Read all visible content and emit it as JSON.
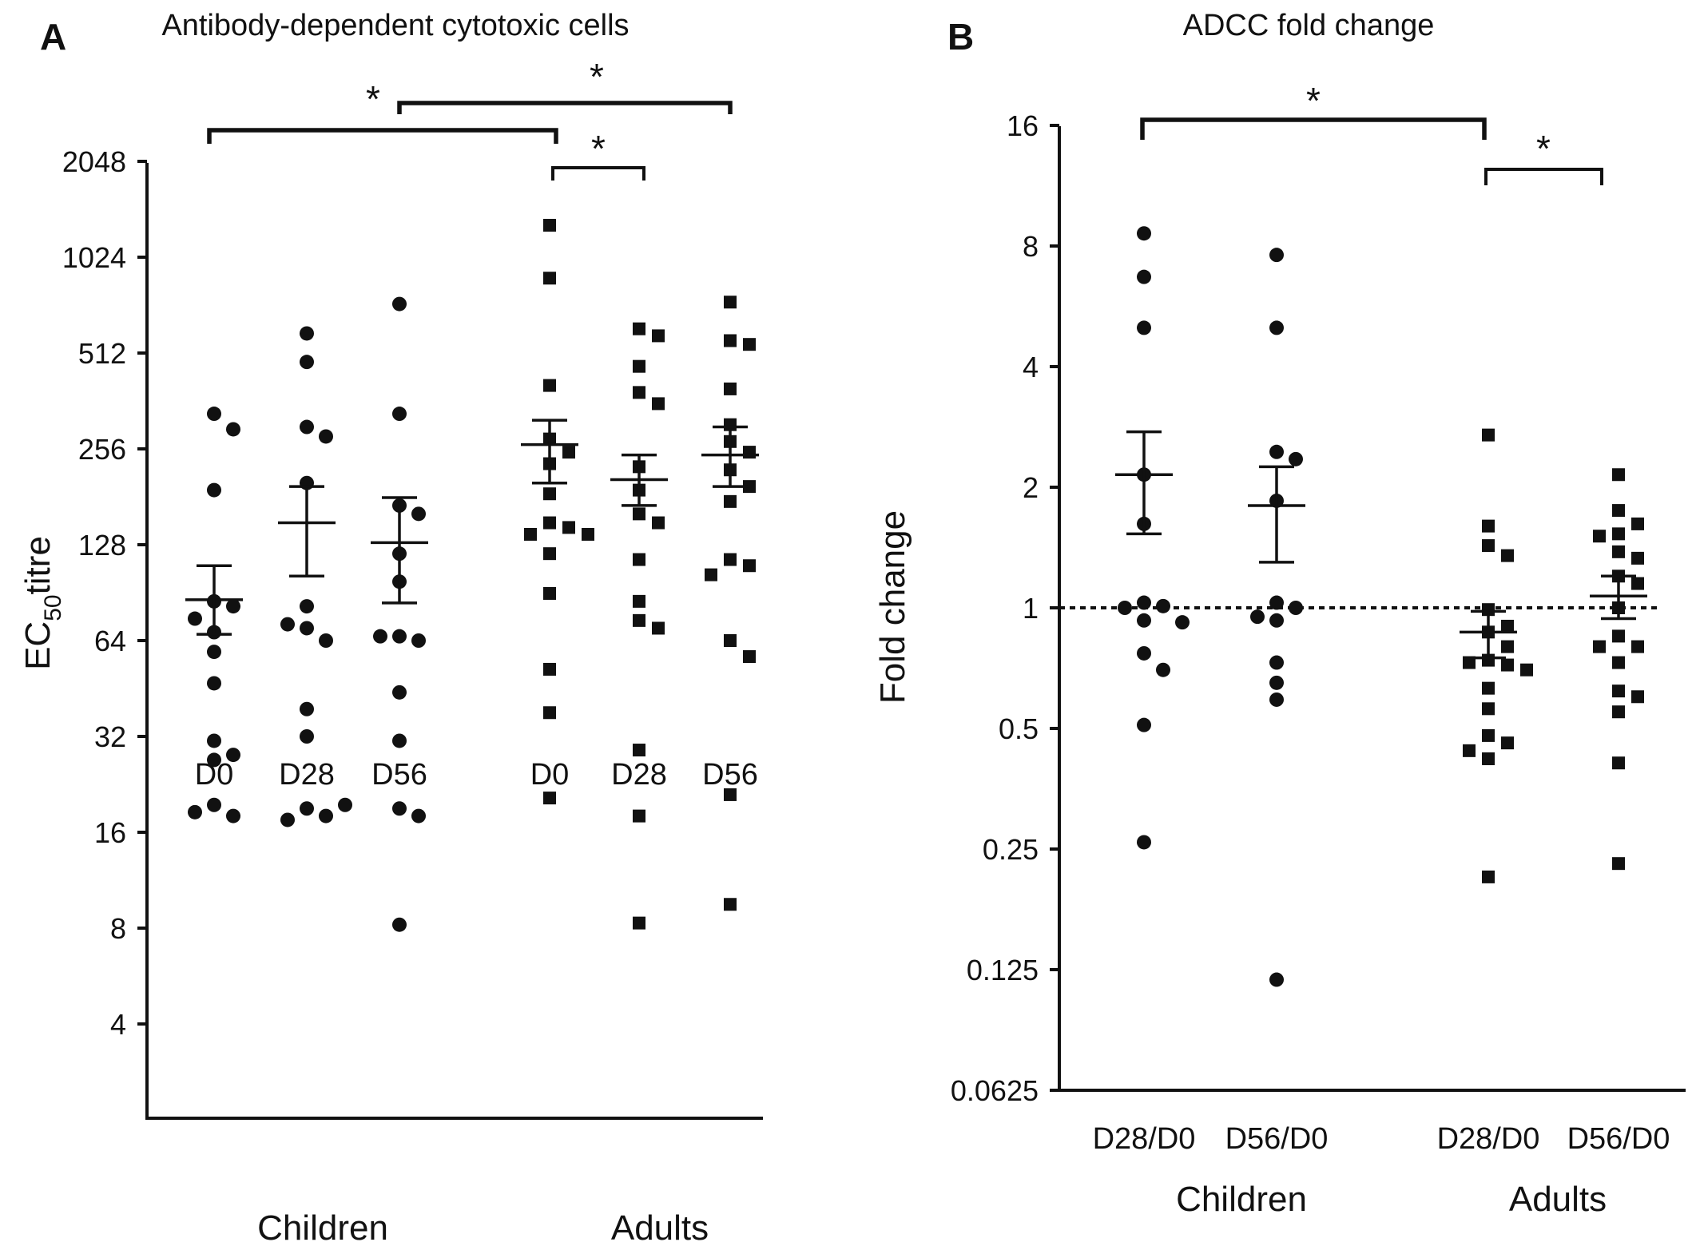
{
  "colors": {
    "ink": "#111111",
    "background": "#ffffff"
  },
  "chart_data": [
    {
      "panel": "A",
      "type": "scatter",
      "title": "Antibody-dependent cytotoxic cells",
      "ylabel": "EC50titre",
      "ylabel_main": "EC",
      "ylabel_sub": "50",
      "ylabel_tail": "titre",
      "yscale": "log2",
      "ylim": [
        2.8,
        2048
      ],
      "yticks": [
        4,
        8,
        16,
        32,
        64,
        128,
        256,
        512,
        1024,
        2048
      ],
      "ytick_labels": [
        "4",
        "8",
        "16",
        "32",
        "64",
        "128",
        "256",
        "512",
        "1024",
        "2048"
      ],
      "groups": [
        "Children",
        "Adults"
      ],
      "categories": [
        "D0",
        "D28",
        "D56",
        "D0",
        "D28",
        "D56"
      ],
      "series": [
        {
          "group": "Children",
          "category": "D0",
          "marker": "circle",
          "mean": 86,
          "sem": [
            67,
            110
          ],
          "values": [
            330,
            295,
            190,
            85,
            82,
            68,
            75,
            59,
            47,
            31,
            28,
            27,
            19.5,
            18,
            18.5
          ]
        },
        {
          "group": "Children",
          "category": "D28",
          "marker": "circle",
          "mean": 150,
          "sem": [
            102,
            195
          ],
          "values": [
            590,
            480,
            300,
            280,
            200,
            82,
            70,
            64,
            72,
            39,
            32,
            19,
            18,
            17.5,
            19.5
          ]
        },
        {
          "group": "Children",
          "category": "D56",
          "marker": "circle",
          "mean": 130,
          "sem": [
            84,
            180
          ],
          "values": [
            730,
            330,
            170,
            160,
            120,
            98,
            66,
            64,
            66,
            44,
            31,
            19,
            18,
            8.2
          ]
        },
        {
          "group": "Adults",
          "category": "D0",
          "marker": "square",
          "mean": 264,
          "sem": [
            200,
            315
          ],
          "values": [
            1290,
            880,
            405,
            275,
            250,
            230,
            185,
            150,
            145,
            138,
            138,
            120,
            90,
            52,
            38,
            20.5
          ]
        },
        {
          "group": "Adults",
          "category": "D28",
          "marker": "square",
          "mean": 205,
          "sem": [
            170,
            245
          ],
          "values": [
            610,
            580,
            465,
            385,
            355,
            225,
            190,
            160,
            150,
            115,
            85,
            74,
            70,
            29,
            18,
            8.3
          ]
        },
        {
          "group": "Adults",
          "category": "D56",
          "marker": "square",
          "mean": 245,
          "sem": [
            195,
            300
          ],
          "values": [
            740,
            560,
            545,
            395,
            305,
            270,
            250,
            220,
            195,
            175,
            115,
            110,
            103,
            64,
            57,
            21,
            9.5
          ]
        }
      ],
      "significance": [
        {
          "from": "Children D0",
          "to": "Adults D0",
          "label": "*"
        },
        {
          "from": "Children D56",
          "to": "Adults D56",
          "label": "*"
        },
        {
          "from": "Adults D0",
          "to": "Adults D28",
          "label": "*"
        }
      ]
    },
    {
      "panel": "B",
      "type": "scatter",
      "title": "ADCC fold change",
      "ylabel": "Fold change",
      "yscale": "log2",
      "ylim": [
        0.0625,
        16
      ],
      "yticks": [
        0.0625,
        0.125,
        0.25,
        0.5,
        1,
        2,
        4,
        8,
        16
      ],
      "ytick_labels": [
        "0.0625",
        "0.125",
        "0.25",
        "0.5",
        "1",
        "2",
        "4",
        "8",
        "16"
      ],
      "reference_line": 1,
      "groups": [
        "Children",
        "Adults"
      ],
      "categories": [
        "D28/D0",
        "D56/D0",
        "D28/D0",
        "D56/D0"
      ],
      "series": [
        {
          "group": "Children",
          "category": "D28/D0",
          "marker": "circle",
          "mean": 2.15,
          "sem": [
            1.53,
            2.75
          ],
          "values": [
            8.6,
            6.7,
            5.0,
            2.15,
            1.62,
            1.03,
            1.01,
            1.0,
            0.93,
            0.92,
            0.77,
            0.7,
            0.51,
            0.26
          ]
        },
        {
          "group": "Children",
          "category": "D56/D0",
          "marker": "circle",
          "mean": 1.8,
          "sem": [
            1.3,
            2.25
          ],
          "values": [
            7.6,
            5.0,
            2.45,
            2.35,
            1.85,
            1.03,
            1.0,
            0.95,
            0.93,
            0.73,
            0.65,
            0.59,
            0.118
          ]
        },
        {
          "group": "Adults",
          "category": "D28/D0",
          "marker": "square",
          "mean": 0.87,
          "sem": [
            0.75,
            0.98
          ],
          "values": [
            2.7,
            1.6,
            1.43,
            1.35,
            0.99,
            0.9,
            0.87,
            0.8,
            0.74,
            0.73,
            0.72,
            0.7,
            0.63,
            0.56,
            0.48,
            0.46,
            0.44,
            0.42,
            0.213
          ]
        },
        {
          "group": "Adults",
          "category": "D56/D0",
          "marker": "square",
          "mean": 1.07,
          "sem": [
            0.94,
            1.2
          ],
          "values": [
            2.15,
            1.75,
            1.62,
            1.53,
            1.51,
            1.38,
            1.33,
            1.2,
            1.15,
            1.0,
            0.85,
            0.8,
            0.8,
            0.73,
            0.62,
            0.6,
            0.55,
            0.41,
            0.23
          ]
        }
      ],
      "significance": [
        {
          "from": "Children D28/D0",
          "to": "Adults D28/D0",
          "label": "*"
        },
        {
          "from": "Adults D28/D0",
          "to": "Adults D56/D0",
          "label": "*"
        }
      ]
    }
  ]
}
